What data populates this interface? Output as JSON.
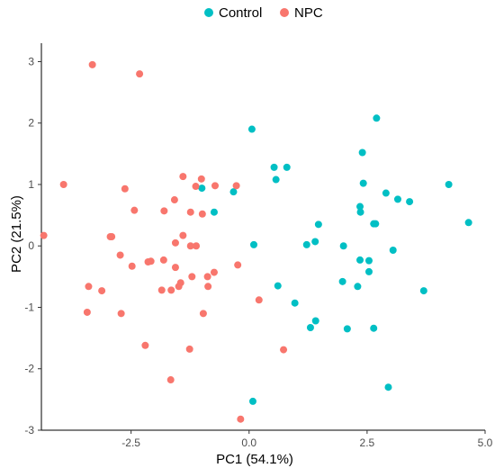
{
  "chart_data": {
    "type": "scatter",
    "xlabel": "PC1 (54.1%)",
    "ylabel": "PC2 (21.5%)",
    "xlim": [
      -4.4,
      5.0
    ],
    "ylim": [
      -3.0,
      3.3
    ],
    "x_ticks": [
      -2.5,
      0.0,
      2.5,
      5.0
    ],
    "x_tick_labels": [
      "-2.5",
      "0.0",
      "2.5",
      "5.0"
    ],
    "y_ticks": [
      -3,
      -2,
      -1,
      0,
      1,
      2,
      3
    ],
    "y_tick_labels": [
      "-3",
      "-2",
      "-1",
      "0",
      "1",
      "2",
      "3"
    ],
    "grid": false,
    "legend_position": "top",
    "series": [
      {
        "name": "Control",
        "color": "#00BFC4",
        "points": [
          [
            0.06,
            1.9
          ],
          [
            2.7,
            2.08
          ],
          [
            2.4,
            1.52
          ],
          [
            0.53,
            1.28
          ],
          [
            0.8,
            1.28
          ],
          [
            0.57,
            1.08
          ],
          [
            2.42,
            1.02
          ],
          [
            4.23,
            1.0
          ],
          [
            2.9,
            0.86
          ],
          [
            3.15,
            0.76
          ],
          [
            3.4,
            0.72
          ],
          [
            -1.0,
            0.94
          ],
          [
            -0.74,
            0.55
          ],
          [
            -0.33,
            0.88
          ],
          [
            1.47,
            0.35
          ],
          [
            2.35,
            0.64
          ],
          [
            2.36,
            0.55
          ],
          [
            2.68,
            0.36
          ],
          [
            2.64,
            0.36
          ],
          [
            4.65,
            0.38
          ],
          [
            1.4,
            0.07
          ],
          [
            0.1,
            0.02
          ],
          [
            1.22,
            0.02
          ],
          [
            2.0,
            0.0
          ],
          [
            3.05,
            -0.07
          ],
          [
            2.35,
            -0.23
          ],
          [
            2.54,
            -0.24
          ],
          [
            2.54,
            -0.42
          ],
          [
            1.98,
            -0.58
          ],
          [
            2.3,
            -0.66
          ],
          [
            0.61,
            -0.65
          ],
          [
            0.97,
            -0.93
          ],
          [
            3.7,
            -0.73
          ],
          [
            1.41,
            -1.22
          ],
          [
            1.3,
            -1.33
          ],
          [
            2.08,
            -1.35
          ],
          [
            2.64,
            -1.34
          ],
          [
            2.95,
            -2.3
          ],
          [
            0.08,
            -2.53
          ]
        ]
      },
      {
        "name": "NPC",
        "color": "#F8766D",
        "points": [
          [
            -3.32,
            2.95
          ],
          [
            -2.32,
            2.8
          ],
          [
            -3.93,
            1.0
          ],
          [
            -4.35,
            0.17
          ],
          [
            -2.63,
            0.93
          ],
          [
            -1.4,
            1.13
          ],
          [
            -1.01,
            1.09
          ],
          [
            -0.72,
            0.98
          ],
          [
            -0.27,
            0.98
          ],
          [
            -1.13,
            0.97
          ],
          [
            -1.58,
            0.75
          ],
          [
            -2.43,
            0.58
          ],
          [
            -1.8,
            0.57
          ],
          [
            -1.24,
            0.55
          ],
          [
            -0.99,
            0.52
          ],
          [
            -2.94,
            0.15
          ],
          [
            -2.91,
            0.15
          ],
          [
            -1.56,
            0.05
          ],
          [
            -1.4,
            0.17
          ],
          [
            -1.12,
            0.0
          ],
          [
            -1.24,
            0.0
          ],
          [
            -2.73,
            -0.15
          ],
          [
            -2.14,
            -0.26
          ],
          [
            -2.08,
            -0.25
          ],
          [
            -1.81,
            -0.23
          ],
          [
            -2.48,
            -0.33
          ],
          [
            -1.56,
            -0.35
          ],
          [
            -1.45,
            -0.6
          ],
          [
            -1.21,
            -0.5
          ],
          [
            -0.74,
            -0.43
          ],
          [
            -0.88,
            -0.5
          ],
          [
            -0.24,
            -0.31
          ],
          [
            -0.87,
            -0.66
          ],
          [
            -1.49,
            -0.66
          ],
          [
            -1.65,
            -0.72
          ],
          [
            -1.85,
            -0.72
          ],
          [
            -3.4,
            -0.66
          ],
          [
            -3.12,
            -0.73
          ],
          [
            -3.43,
            -1.08
          ],
          [
            -2.71,
            -1.1
          ],
          [
            -2.2,
            -1.62
          ],
          [
            -0.97,
            -1.1
          ],
          [
            -1.26,
            -1.68
          ],
          [
            -1.66,
            -2.18
          ],
          [
            0.21,
            -0.88
          ],
          [
            0.73,
            -1.69
          ],
          [
            -0.18,
            -2.82
          ]
        ]
      }
    ]
  }
}
